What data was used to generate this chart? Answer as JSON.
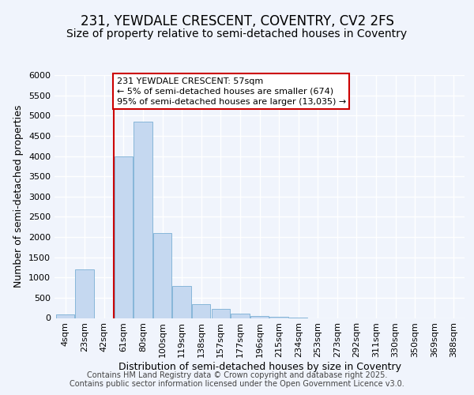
{
  "title1": "231, YEWDALE CRESCENT, COVENTRY, CV2 2FS",
  "title2": "Size of property relative to semi-detached houses in Coventry",
  "xlabel": "Distribution of semi-detached houses by size in Coventry",
  "ylabel": "Number of semi-detached properties",
  "categories": [
    "4sqm",
    "23sqm",
    "42sqm",
    "61sqm",
    "80sqm",
    "100sqm",
    "119sqm",
    "138sqm",
    "157sqm",
    "177sqm",
    "196sqm",
    "215sqm",
    "234sqm",
    "253sqm",
    "273sqm",
    "292sqm",
    "311sqm",
    "330sqm",
    "350sqm",
    "369sqm",
    "388sqm"
  ],
  "values": [
    80,
    1200,
    0,
    4000,
    4850,
    2100,
    800,
    350,
    230,
    110,
    50,
    20,
    5,
    0,
    0,
    0,
    0,
    0,
    0,
    0,
    0
  ],
  "bar_color": "#c5d8f0",
  "bar_edge_color": "#7aafd4",
  "vline_x": 3.0,
  "vline_color": "#cc0000",
  "annotation_title": "231 YEWDALE CRESCENT: 57sqm",
  "annotation_line1": "← 5% of semi-detached houses are smaller (674)",
  "annotation_line2": "95% of semi-detached houses are larger (13,035) →",
  "ylim_min": 0,
  "ylim_max": 6000,
  "yticks": [
    0,
    500,
    1000,
    1500,
    2000,
    2500,
    3000,
    3500,
    4000,
    4500,
    5000,
    5500,
    6000
  ],
  "footer1": "Contains HM Land Registry data © Crown copyright and database right 2025.",
  "footer2": "Contains public sector information licensed under the Open Government Licence v3.0.",
  "bg_color": "#f0f4fc",
  "plot_bg_color": "#f0f4fc",
  "grid_color": "#ffffff",
  "title_fontsize": 12,
  "subtitle_fontsize": 10,
  "axis_label_fontsize": 9,
  "tick_fontsize": 8,
  "annotation_fontsize": 8,
  "footer_fontsize": 7
}
